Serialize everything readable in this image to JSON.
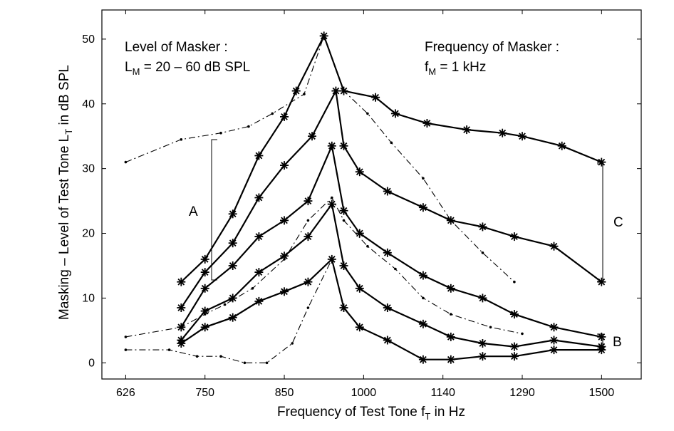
{
  "chart_data": {
    "type": "line",
    "title": "",
    "xlabel": {
      "main": "Frequency of Test Tone f",
      "sub": "T",
      "tail": " in Hz"
    },
    "ylabel": {
      "main": "Masking – Level of Test Tone L",
      "sub": "T",
      "tail": " in dB SPL"
    },
    "x_ticks": [
      "626",
      "750",
      "850",
      "1000",
      "1140",
      "1290",
      "1500"
    ],
    "y_ticks": [
      "0",
      "10",
      "20",
      "30",
      "40",
      "50"
    ],
    "x_tick_values": [
      0,
      1,
      2,
      3,
      4,
      5,
      6
    ],
    "xlim": [
      -0.3,
      6.5
    ],
    "ylim": [
      -2.5,
      54.5
    ],
    "grid": false,
    "annotations": {
      "level_title": "Level of Masker :",
      "level_value": {
        "main": "L",
        "sub": "M",
        "tail": " = 20 – 60 dB SPL"
      },
      "freq_title": "Frequency of Masker :",
      "freq_value": {
        "main": "f",
        "sub": "M",
        "tail": " = 1 kHz"
      },
      "bracket_a": "A",
      "bracket_b": "B",
      "bracket_c": "C"
    },
    "series": [
      {
        "style": "solid-star",
        "x": [
          0.7,
          1.0,
          1.35,
          1.68,
          2.0,
          2.15,
          2.5,
          2.75,
          3.15,
          3.4,
          3.8,
          4.3,
          4.75,
          5.0,
          5.5,
          6.0
        ],
        "y": [
          12.5,
          16,
          23,
          32,
          38,
          42,
          50.5,
          42,
          41,
          38.5,
          37,
          36,
          35.5,
          35,
          33.5,
          31
        ]
      },
      {
        "style": "solid-star",
        "x": [
          0.7,
          1.0,
          1.35,
          1.68,
          2.0,
          2.35,
          2.65,
          2.75,
          2.95,
          3.3,
          3.75,
          4.1,
          4.5,
          4.9,
          5.4,
          6.0
        ],
        "y": [
          8.5,
          14,
          18.5,
          25.5,
          30.5,
          35,
          42,
          33.5,
          29.5,
          26.5,
          24,
          22,
          21,
          19.5,
          18,
          12.5
        ]
      },
      {
        "style": "solid-star",
        "x": [
          0.7,
          1.0,
          1.35,
          1.68,
          2.0,
          2.3,
          2.6,
          2.75,
          2.95,
          3.3,
          3.75,
          4.1,
          4.5,
          4.9,
          5.4,
          6.0
        ],
        "y": [
          5.5,
          11.5,
          15,
          19.5,
          22,
          25,
          33.5,
          23.5,
          20,
          17,
          13.5,
          11.5,
          10,
          7.5,
          5.5,
          4
        ]
      },
      {
        "style": "solid-star",
        "x": [
          0.7,
          1.0,
          1.35,
          1.68,
          2.0,
          2.3,
          2.6,
          2.75,
          2.95,
          3.3,
          3.75,
          4.1,
          4.5,
          4.9,
          5.4,
          6.0
        ],
        "y": [
          3.5,
          8,
          10,
          14,
          16.5,
          19.5,
          24.5,
          15,
          11.5,
          8.5,
          6,
          4,
          3,
          2.5,
          3.5,
          2.5
        ]
      },
      {
        "style": "solid-star",
        "x": [
          0.7,
          1.0,
          1.35,
          1.68,
          2.0,
          2.3,
          2.6,
          2.75,
          2.95,
          3.3,
          3.75,
          4.1,
          4.5,
          4.9,
          5.4,
          6.0
        ],
        "y": [
          3,
          5.5,
          7,
          9.5,
          11,
          12.5,
          16,
          8.5,
          5.5,
          3.5,
          0.5,
          0.5,
          1,
          1,
          2,
          2
        ]
      },
      {
        "style": "dashdot",
        "x": [
          0,
          0.7,
          1.2,
          1.55,
          1.85,
          2.25,
          2.5,
          2.75,
          3.05,
          3.35,
          3.75,
          4.1,
          4.5,
          4.9
        ],
        "y": [
          31,
          34.5,
          35.5,
          36.5,
          38.5,
          41.5,
          50.5,
          42,
          38.5,
          34,
          28.5,
          22,
          17,
          12.5
        ]
      },
      {
        "style": "dashdot",
        "x": [
          0,
          0.7,
          1.0,
          1.25,
          1.6,
          2.0,
          2.3,
          2.6,
          2.75,
          3.05,
          3.4,
          3.75,
          4.1,
          4.6,
          5.0
        ],
        "y": [
          4,
          5.5,
          7.5,
          9,
          11.5,
          16,
          22,
          25.5,
          22,
          18,
          14.5,
          10,
          7.5,
          5.5,
          4.5
        ]
      },
      {
        "style": "dashdot",
        "x": [
          0,
          0.55,
          0.9,
          1.2,
          1.5,
          1.78,
          2.1,
          2.3,
          2.6
        ],
        "y": [
          2,
          2,
          1,
          1,
          0,
          0,
          3,
          8.5,
          16
        ]
      }
    ]
  }
}
